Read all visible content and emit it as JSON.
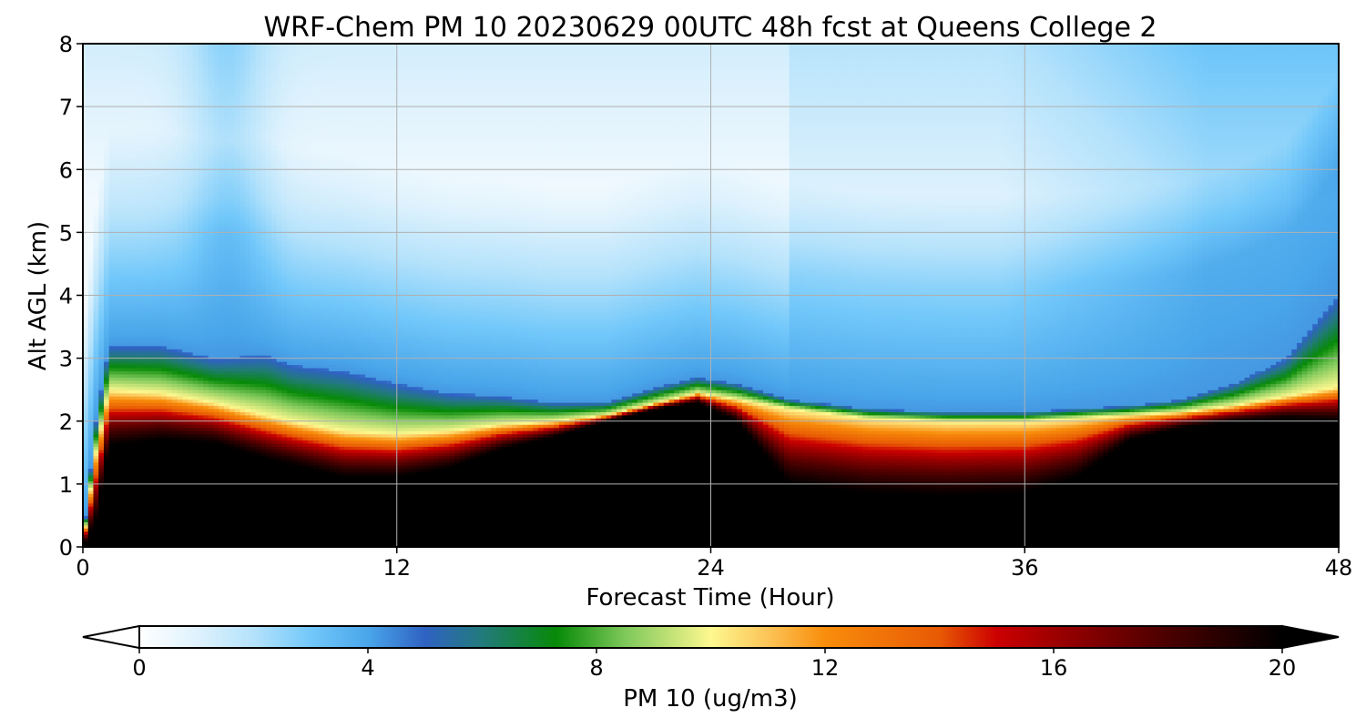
{
  "chart_data": {
    "type": "heatmap",
    "title": "WRF-Chem PM 10  20230629 00UTC 48h fcst at Queens College 2",
    "xlabel": "Forecast Time (Hour)",
    "ylabel": "Alt AGL (km)",
    "xlim": [
      0,
      48
    ],
    "ylim": [
      0,
      8
    ],
    "xticks": [
      "0",
      "12",
      "24",
      "36",
      "48"
    ],
    "yticks": [
      "0",
      "1",
      "2",
      "3",
      "4",
      "5",
      "6",
      "7",
      "8"
    ],
    "grid": true,
    "colorbar": {
      "label": "PM 10  (ug/m3)",
      "range": [
        0,
        20
      ],
      "ticks": [
        "0",
        "4",
        "8",
        "12",
        "16",
        "20"
      ],
      "extend": "both",
      "orientation": "horizontal",
      "stops": [
        {
          "v": 0,
          "color": "#ffffff"
        },
        {
          "v": 1,
          "color": "#dff2fd"
        },
        {
          "v": 2,
          "color": "#b4e2fb"
        },
        {
          "v": 3,
          "color": "#72c8fa"
        },
        {
          "v": 4,
          "color": "#4aa6ea"
        },
        {
          "v": 5,
          "color": "#2f62c3"
        },
        {
          "v": 6,
          "color": "#227a7c"
        },
        {
          "v": 7.3,
          "color": "#078a07"
        },
        {
          "v": 8.5,
          "color": "#7ec85a"
        },
        {
          "v": 10,
          "color": "#fdf88f"
        },
        {
          "v": 11,
          "color": "#fcc457"
        },
        {
          "v": 12,
          "color": "#f88d0b"
        },
        {
          "v": 14,
          "color": "#e85a04"
        },
        {
          "v": 15,
          "color": "#cc0000"
        },
        {
          "v": 16,
          "color": "#9e0000"
        },
        {
          "v": 18,
          "color": "#4a0000"
        },
        {
          "v": 20,
          "color": "#000000"
        }
      ]
    },
    "time_hours": [
      0,
      0.5,
      1,
      3,
      5,
      7,
      8,
      10,
      12,
      14,
      16,
      18,
      20,
      22,
      23.5,
      25,
      27,
      30,
      33,
      36,
      38,
      40,
      42,
      44,
      46,
      48
    ],
    "layer_heights_km": {
      "dense_layer_top": [
        0.05,
        1.5,
        2.5,
        2.45,
        2.3,
        2.1,
        2.0,
        1.85,
        1.8,
        1.85,
        1.95,
        2.0,
        2.1,
        2.3,
        2.45,
        2.35,
        2.2,
        2.05,
        2.0,
        2.0,
        2.05,
        2.1,
        2.15,
        2.25,
        2.4,
        2.55
      ],
      "aerosol_top": [
        0.1,
        2.0,
        3.2,
        3.2,
        3.0,
        3.05,
        2.9,
        2.8,
        2.6,
        2.45,
        2.4,
        2.3,
        2.3,
        2.55,
        2.7,
        2.6,
        2.35,
        2.2,
        2.15,
        2.15,
        2.2,
        2.25,
        2.35,
        2.6,
        3.0,
        4.0
      ],
      "saturated_top": [
        0.0,
        0.4,
        1.6,
        1.7,
        1.65,
        1.4,
        1.3,
        1.1,
        1.1,
        1.25,
        1.55,
        1.75,
        2.0,
        2.2,
        2.3,
        2.0,
        1.0,
        0.85,
        0.8,
        0.85,
        1.1,
        1.7,
        1.9,
        2.0,
        2.05,
        2.0
      ]
    }
  }
}
